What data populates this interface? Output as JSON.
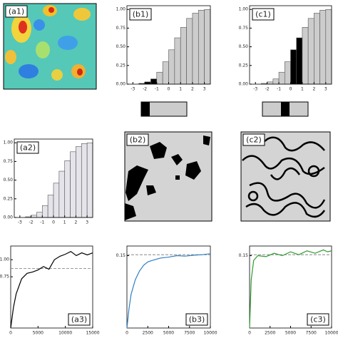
{
  "chart_data": [
    {
      "type": "image",
      "label": "(a1)"
    },
    {
      "type": "histogram",
      "label": "(b1)",
      "bins": [
        -2.5,
        -2,
        -1.5,
        -1,
        -0.5,
        0,
        0.5,
        1,
        1.5,
        2,
        2.5,
        3,
        3.5
      ],
      "values": [
        0.01,
        0.03,
        0.07,
        0.16,
        0.3,
        0.46,
        0.62,
        0.76,
        0.88,
        0.95,
        0.99,
        1.0
      ],
      "colors": [
        "#000000",
        "#000000",
        "#000000",
        "#cccccc",
        "#cccccc",
        "#cccccc",
        "#cccccc",
        "#cccccc",
        "#cccccc",
        "#cccccc",
        "#cccccc",
        "#cccccc"
      ],
      "xlim": [
        -3.5,
        3.5
      ],
      "xticks": [
        -3,
        -2,
        -1,
        0,
        1,
        2,
        3
      ],
      "ylim": [
        0,
        1.05
      ],
      "yticks": [
        {
          "value": 0,
          "label": "0.00"
        },
        {
          "value": 0.25,
          "label": "0.25"
        },
        {
          "value": 0.5,
          "label": "0.50"
        },
        {
          "value": 0.75,
          "label": "0.75"
        },
        {
          "value": 1,
          "label": "1.00"
        }
      ]
    },
    {
      "type": "histogram",
      "label": "(c1)",
      "bins": [
        -2.5,
        -2,
        -1.5,
        -1,
        -0.5,
        0,
        0.5,
        1,
        1.5,
        2,
        2.5,
        3,
        3.5
      ],
      "values": [
        0.01,
        0.03,
        0.07,
        0.16,
        0.3,
        0.46,
        0.62,
        0.76,
        0.88,
        0.95,
        0.99,
        1.0
      ],
      "colors": [
        "#cccccc",
        "#cccccc",
        "#cccccc",
        "#cccccc",
        "#cccccc",
        "#000000",
        "#000000",
        "#cccccc",
        "#cccccc",
        "#cccccc",
        "#cccccc",
        "#cccccc"
      ],
      "xlim": [
        -3.5,
        3.5
      ],
      "xticks": [
        -3,
        -2,
        -1,
        0,
        1,
        2,
        3
      ],
      "ylim": [
        0,
        1.05
      ],
      "yticks": [
        {
          "value": 0,
          "label": "0.00"
        },
        {
          "value": 0.25,
          "label": "0.25"
        },
        {
          "value": 0.5,
          "label": "0.50"
        },
        {
          "value": 0.75,
          "label": "0.75"
        },
        {
          "value": 1,
          "label": "1.00"
        }
      ]
    },
    {
      "type": "histogram",
      "label": "(a2)",
      "bins": [
        -2.5,
        -2,
        -1.5,
        -1,
        -0.5,
        0,
        0.5,
        1,
        1.5,
        2,
        2.5,
        3,
        3.5
      ],
      "values": [
        0.01,
        0.03,
        0.07,
        0.16,
        0.3,
        0.46,
        0.62,
        0.76,
        0.88,
        0.95,
        0.99,
        1.0
      ],
      "colors": [
        "#e4e4ea",
        "#e4e4ea",
        "#e4e4ea",
        "#e4e4ea",
        "#e4e4ea",
        "#e4e4ea",
        "#e4e4ea",
        "#e4e4ea",
        "#e4e4ea",
        "#e4e4ea",
        "#e4e4ea",
        "#e4e4ea"
      ],
      "xlim": [
        -3.5,
        3.5
      ],
      "xticks": [
        -3,
        -2,
        -1,
        0,
        1,
        2,
        3
      ],
      "ylim": [
        0,
        1.05
      ],
      "yticks": [
        {
          "value": 0,
          "label": "0.00"
        },
        {
          "value": 0.25,
          "label": "0.25"
        },
        {
          "value": 0.5,
          "label": "0.50"
        },
        {
          "value": 0.75,
          "label": "0.75"
        },
        {
          "value": 1,
          "label": "1.00"
        }
      ]
    },
    {
      "type": "image",
      "label": "(b2)"
    },
    {
      "type": "image",
      "label": "(c2)"
    },
    {
      "type": "line",
      "label": "(a3)",
      "color": "#000000",
      "x": [
        0,
        500,
        1000,
        2000,
        3000,
        4000,
        5000,
        6000,
        7000,
        8000,
        9000,
        10000,
        11000,
        12000,
        13000,
        14000,
        15000
      ],
      "values": [
        0,
        0.3,
        0.5,
        0.72,
        0.8,
        0.82,
        0.85,
        0.9,
        0.86,
        1.0,
        1.05,
        1.08,
        1.12,
        1.06,
        1.1,
        1.07,
        1.1
      ],
      "ref": 0.87,
      "xlim": [
        0,
        15000
      ],
      "xticks": [
        0,
        5000,
        10000,
        15000
      ],
      "ylim": [
        0,
        1.2
      ],
      "yticks": [
        {
          "value": 0.75,
          "label": "0.75"
        },
        {
          "value": 1,
          "label": "1.00"
        }
      ]
    },
    {
      "type": "line",
      "label": "(b3)",
      "color": "#2f7fc1",
      "x": [
        0,
        250,
        500,
        1000,
        1500,
        2000,
        2500,
        3000,
        4000,
        5000,
        6000,
        7000,
        8000,
        9000,
        10000
      ],
      "values": [
        0,
        0.04,
        0.07,
        0.1,
        0.118,
        0.13,
        0.137,
        0.14,
        0.145,
        0.147,
        0.15,
        0.149,
        0.151,
        0.152,
        0.154
      ],
      "ref": 0.152,
      "xlim": [
        0,
        10000
      ],
      "xticks": [
        0,
        2500,
        5000,
        7500,
        10000
      ],
      "ylim": [
        0,
        0.17
      ],
      "yticks": [
        0.15
      ]
    },
    {
      "type": "line",
      "label": "(c3)",
      "color": "#2e9a2e",
      "x": [
        0,
        200,
        500,
        1000,
        2000,
        3000,
        4000,
        5000,
        6000,
        7000,
        8000,
        9000,
        9500,
        10000
      ],
      "values": [
        0,
        0.1,
        0.14,
        0.15,
        0.148,
        0.155,
        0.15,
        0.158,
        0.152,
        0.16,
        0.155,
        0.162,
        0.158,
        0.16
      ],
      "ref": 0.152,
      "xlim": [
        0,
        10000
      ],
      "xticks": [
        0,
        2500,
        5000,
        7500,
        10000
      ],
      "ylim": [
        0,
        0.17
      ],
      "yticks": [
        0.15
      ]
    }
  ]
}
